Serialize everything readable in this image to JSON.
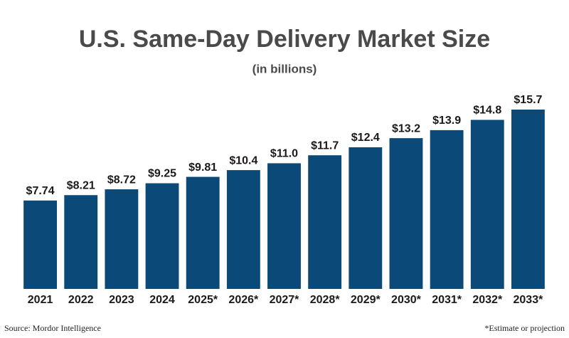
{
  "chart_data": {
    "type": "bar",
    "title": "U.S. Same-Day Delivery Market Size",
    "subtitle": "(in billions)",
    "categories": [
      "2021",
      "2022",
      "2023",
      "2024",
      "2025*",
      "2026*",
      "2027*",
      "2028*",
      "2029*",
      "2030*",
      "2031*",
      "2032*",
      "2033*"
    ],
    "values": [
      7.74,
      8.21,
      8.72,
      9.25,
      9.81,
      10.4,
      11.0,
      11.7,
      12.4,
      13.2,
      13.9,
      14.8,
      15.7
    ],
    "value_labels": [
      "$7.74",
      "$8.21",
      "$8.72",
      "$9.25",
      "$9.81",
      "$10.4",
      "$11.0",
      "$11.7",
      "$12.4",
      "$13.2",
      "$13.9",
      "$14.8",
      "$15.7"
    ],
    "color": "#0b4a78",
    "source": "Source: Mordor Intelligence",
    "note": "*Estimate or projection"
  }
}
